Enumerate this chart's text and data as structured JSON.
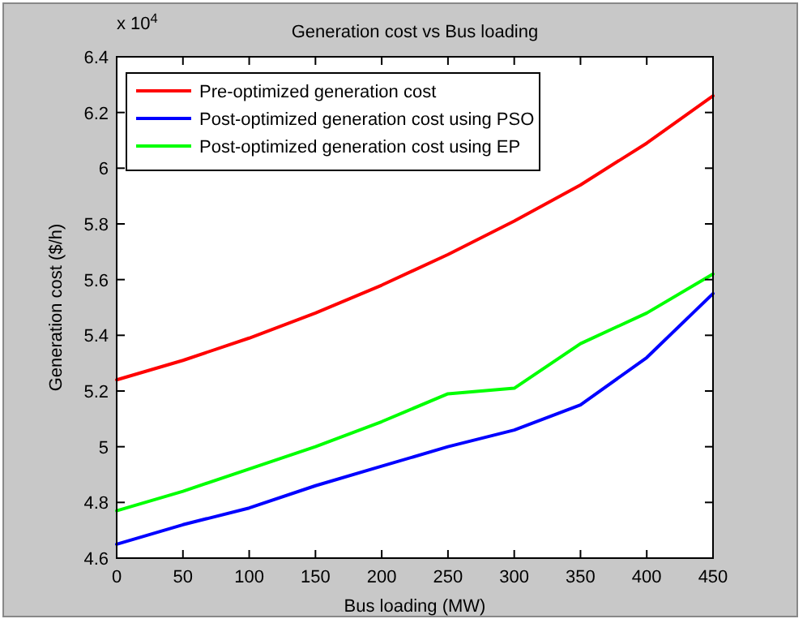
{
  "chart_data": {
    "type": "line",
    "title": "Generation cost vs Bus loading",
    "xlabel": "Bus loading (MW)",
    "ylabel": "Generation cost ($/h)",
    "annotations": [
      "x 10$^{4}$"
    ],
    "x": [
      0,
      50,
      100,
      150,
      200,
      250,
      300,
      350,
      400,
      450
    ],
    "series": [
      {
        "name": "Pre-optimized generation cost",
        "color": "#ff0000",
        "values": [
          5.24,
          5.31,
          5.39,
          5.48,
          5.58,
          5.69,
          5.81,
          5.94,
          6.09,
          6.26
        ]
      },
      {
        "name": "Post-optimized generation cost using PSO",
        "color": "#0000ff",
        "values": [
          4.65,
          4.72,
          4.78,
          4.86,
          4.93,
          5.0,
          5.06,
          5.15,
          5.32,
          5.55
        ]
      },
      {
        "name": "Post-optimized generation cost using EP",
        "color": "#00ff00",
        "values": [
          4.77,
          4.84,
          4.92,
          5.0,
          5.09,
          5.19,
          5.21,
          5.37,
          5.48,
          5.62
        ]
      }
    ],
    "xlim": [
      0,
      450
    ],
    "xticks": [
      0,
      50,
      100,
      150,
      200,
      250,
      300,
      350,
      400,
      450
    ],
    "ylim": [
      4.6,
      6.4
    ],
    "yticks": [
      4.6,
      4.8,
      5,
      5.2,
      5.4,
      5.6,
      5.8,
      6,
      6.2,
      6.4
    ],
    "grid": false,
    "legend": "top left",
    "marker": "none",
    "line_style": "solid"
  }
}
